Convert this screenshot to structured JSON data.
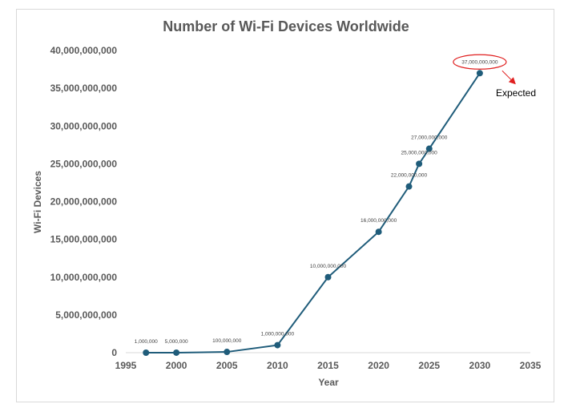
{
  "chart_data": {
    "type": "line",
    "title": "Number of Wi-Fi Devices Worldwide",
    "xlabel": "Year",
    "ylabel": "Wi-Fi Devices",
    "xlim": [
      1995,
      2035
    ],
    "ylim": [
      0,
      40000000000
    ],
    "x_ticks": [
      1995,
      2000,
      2005,
      2010,
      2015,
      2020,
      2025,
      2030,
      2035
    ],
    "y_ticks": [
      0,
      5000000000,
      10000000000,
      15000000000,
      20000000000,
      25000000000,
      30000000000,
      35000000000,
      40000000000
    ],
    "y_tick_labels": [
      "0",
      "5,000,000,000",
      "10,000,000,000",
      "15,000,000,000",
      "20,000,000,000",
      "25,000,000,000",
      "30,000,000,000",
      "35,000,000,000",
      "40,000,000,000"
    ],
    "grid": false,
    "series": [
      {
        "x": [
          1997,
          2000,
          2005,
          2010,
          2015,
          2020,
          2023,
          2024,
          2025,
          2030
        ],
        "values": [
          1000000,
          5000000,
          100000000,
          1000000000,
          10000000000,
          16000000000,
          22000000000,
          25000000000,
          27000000000,
          37000000000
        ],
        "labels": [
          "1,000,000",
          "5,000,000",
          "100,000,000",
          "1,000,000,000",
          "10,000,000,000",
          "16,000,000,000",
          "22,000,000,000",
          "25,000,000,000",
          "27,000,000,000",
          "37,000,000,000"
        ],
        "color": "#1f5c7a"
      }
    ],
    "annotation": {
      "text": "Expected",
      "highlight_color": "#e02020"
    }
  }
}
